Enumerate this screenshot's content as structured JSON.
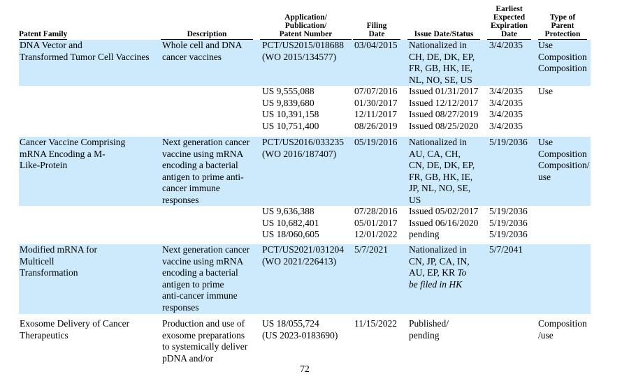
{
  "page": {
    "number": "72"
  },
  "colors": {
    "highlight": "#cdeafc",
    "rule": "#000000",
    "text": "#000000"
  },
  "table": {
    "headers": [
      {
        "id": "patent_family",
        "lines": [
          "Patent Family"
        ],
        "align": "left",
        "underline": "text"
      },
      {
        "id": "description",
        "lines": [
          "Description"
        ],
        "align": "center",
        "underline": "column"
      },
      {
        "id": "application",
        "lines": [
          "Application/",
          "Publication/",
          "Patent Number"
        ],
        "align": "center",
        "underline": "column"
      },
      {
        "id": "filing_date",
        "lines": [
          "Filing",
          "Date"
        ],
        "align": "center",
        "underline": "column"
      },
      {
        "id": "issue_status",
        "lines": [
          "Issue Date/Status"
        ],
        "align": "center",
        "underline": "column"
      },
      {
        "id": "expiration",
        "lines": [
          "Earliest",
          "Expected",
          "Expiration",
          "Date"
        ],
        "align": "center",
        "underline": "column"
      },
      {
        "id": "type",
        "lines": [
          "Type of",
          "Parent",
          "Protection"
        ],
        "align": "center",
        "underline": "column"
      }
    ],
    "rows": [
      {
        "highlight": true,
        "cells": {
          "patent_family": [
            "DNA Vector and",
            "Transformed Tumor Cell Vaccines"
          ],
          "description": [
            "Whole cell and DNA",
            "cancer vaccines"
          ],
          "application": [
            "PCT/US2015/018688",
            "(WO 2015/134577)"
          ],
          "filing_date": [
            "03/04/2015"
          ],
          "issue_status": [
            "Nationalized in",
            "CH, DE, DK, EP,",
            "FR, GB, HK, IE,",
            "NL, NO, SE, US"
          ],
          "expiration": [
            "3/4/2035"
          ],
          "type": [
            "Use",
            "Composition",
            "Composition"
          ]
        }
      },
      {
        "highlight": false,
        "cells": {
          "patent_family": [],
          "description": [],
          "application": [
            "US 9,555,088",
            "US 9,839,680",
            "US 10,391,158",
            "US 10,751,400"
          ],
          "filing_date": [
            "07/07/2016",
            "01/30/2017",
            "12/11/2017",
            "08/26/2019"
          ],
          "issue_status": [
            "Issued 01/31/2017",
            "Issued 12/12/2017",
            "Issued 08/27/2019",
            "Issued 08/25/2020"
          ],
          "expiration": [
            "3/4/2035",
            "3/4/2035",
            "3/4/2035",
            "3/4/2035"
          ],
          "type": [
            "Use"
          ]
        }
      },
      {
        "highlight": true,
        "cells": {
          "patent_family": [
            "Cancer Vaccine Comprising",
            "mRNA Encoding a M-",
            "Like-Protein"
          ],
          "description": [
            "Next generation cancer",
            "vaccine using mRNA",
            "encoding a bacterial",
            "antigen to prime anti-",
            "cancer immune",
            "responses"
          ],
          "application": [
            "PCT/US2016/033235",
            "(WO 2016/187407)"
          ],
          "filing_date": [
            "05/19/2016"
          ],
          "issue_status": [
            "Nationalized in",
            "AU, CA, CH,",
            "CN, DE, DK, EP,",
            "FR, GB, HK, IE,",
            "JP, NL, NO, SE,",
            "US"
          ],
          "expiration": [
            "5/19/2036"
          ],
          "type": [
            "Use",
            "Composition",
            "Composition/",
            "use"
          ]
        }
      },
      {
        "highlight": false,
        "cells": {
          "patent_family": [],
          "description": [],
          "application": [
            "US 9,636,388",
            "US 10,682,401",
            "US 18/060,605"
          ],
          "filing_date": [
            "07/28/2016",
            "05/01/2017",
            "12/01/2022"
          ],
          "issue_status": [
            "Issued 05/02/2017",
            "Issued 06/16/2020",
            "pending"
          ],
          "expiration": [
            "5/19/2036",
            "5/19/2036",
            "5/19/2036"
          ],
          "type": []
        }
      },
      {
        "highlight": true,
        "cells": {
          "patent_family": [
            "Modified mRNA for",
            "Multicell",
            "Transformation"
          ],
          "description": [
            "Next generation cancer",
            "vaccine using mRNA",
            "encoding a bacterial",
            "antigen to prime",
            "anti-cancer immune",
            "responses"
          ],
          "application": [
            "PCT/US2021/031204",
            "(WO 2021/226413)"
          ],
          "filing_date": [
            "5/7/2021"
          ],
          "issue_status": [
            "Nationalized in",
            "CN, JP, CA, IN,",
            [
              {
                "t": "AU, EP, KR ",
                "i": false
              },
              {
                "t": "To",
                "i": true
              }
            ],
            [
              {
                "t": "be filed in HK",
                "i": true
              }
            ]
          ],
          "expiration": [
            "5/7/2041"
          ],
          "type": []
        }
      },
      {
        "highlight": false,
        "cells": {
          "patent_family": [
            "Exosome Delivery of Cancer",
            "Therapeutics"
          ],
          "description": [
            "Production and use of",
            "exosome preparations",
            "to systemically deliver",
            "pDNA and/or"
          ],
          "application": [
            "US 18/055,724",
            "(US 2023-0183690)"
          ],
          "filing_date": [
            "11/15/2022"
          ],
          "issue_status": [
            "Published/",
            "pending"
          ],
          "expiration": [],
          "type": [
            "Composition",
            "/use"
          ]
        }
      }
    ]
  }
}
